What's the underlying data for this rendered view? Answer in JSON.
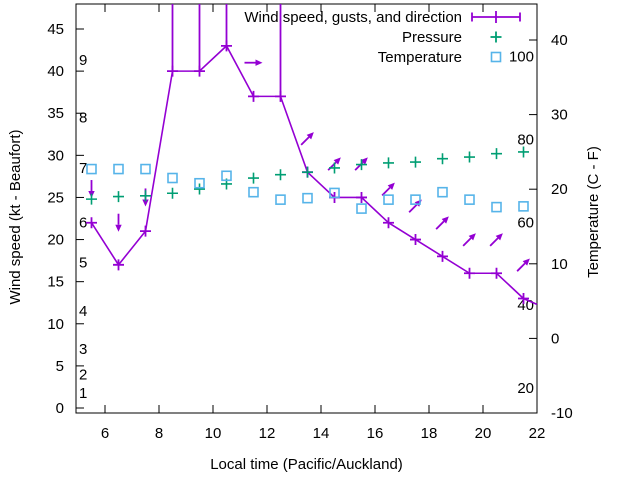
{
  "chart_data": {
    "type": "line",
    "title": "",
    "xlabel": "Local time (Pacific/Auckland)",
    "ylabel": "Wind speed (kt - Beaufort)",
    "y2label": "Temperature (C - F)",
    "background": "#ffffff",
    "grid": "off",
    "x_axis": {
      "tick_labels": [
        "6",
        "8",
        "10",
        "12",
        "14",
        "16",
        "18",
        "20",
        "22"
      ],
      "tick_hours": [
        6,
        8,
        10,
        12,
        14,
        16,
        18,
        20,
        22
      ],
      "range_hours": [
        4.93,
        22
      ]
    },
    "y_axis_left": {
      "tick_labels": [
        "0",
        "5",
        "10",
        "15",
        "20",
        "25",
        "30",
        "35",
        "40",
        "45"
      ],
      "tick_kt": [
        0,
        5,
        10,
        15,
        20,
        25,
        30,
        35,
        40,
        45
      ],
      "range_kt": [
        0,
        48
      ],
      "inner_scale": "Beaufort",
      "beaufort_labels": [
        {
          "label": "1",
          "kt": 1.8
        },
        {
          "label": "2",
          "kt": 4
        },
        {
          "label": "3",
          "kt": 7
        },
        {
          "label": "4",
          "kt": 11.5
        },
        {
          "label": "5",
          "kt": 17.3
        },
        {
          "label": "6",
          "kt": 22
        },
        {
          "label": "7",
          "kt": 28.5
        },
        {
          "label": "8",
          "kt": 34.5
        },
        {
          "label": "9",
          "kt": 41.3
        }
      ]
    },
    "y_axis_right": {
      "tick_labels": [
        "-10",
        "0",
        "10",
        "20",
        "30",
        "40"
      ],
      "tick_c": [
        -10,
        0,
        10,
        20,
        30,
        40
      ],
      "range_c": [
        -10.1,
        44.8
      ],
      "inner_scale": "Fahrenheit",
      "fahrenheit_labels": [
        20,
        40,
        60,
        80,
        100
      ]
    },
    "hours": [
      5.5,
      6.5,
      7.5,
      8.5,
      9.5,
      10.5,
      11.5,
      12.5,
      13.5,
      14.5,
      15.5,
      16.5,
      17.5,
      18.5,
      19.5,
      20.5,
      21.5
    ],
    "series": [
      {
        "name": "Wind speed, gusts, and direction",
        "color": "#9400d3",
        "marker": "plus",
        "style": "line with gust bars and direction arrows",
        "wind_kt": [
          22,
          17,
          21,
          40,
          40,
          43,
          37,
          37,
          28,
          25,
          25,
          22,
          20,
          18,
          16,
          16,
          13
        ],
        "gust_kt": [
          26,
          22,
          25,
          null,
          null,
          null,
          41,
          null,
          32,
          29,
          29,
          26,
          24,
          22,
          20,
          20,
          17
        ],
        "gust_above_chart_top": [
          false,
          false,
          false,
          true,
          true,
          true,
          false,
          true,
          false,
          false,
          false,
          false,
          false,
          false,
          false,
          false,
          false
        ],
        "direction_arrows": [
          "down",
          "down",
          "down",
          null,
          null,
          null,
          "right",
          null,
          "up-right",
          "up-right",
          "up-right",
          "up-right",
          "up-right",
          "up-right",
          "up-right",
          "up-right",
          "up-right"
        ],
        "line_exit": {
          "hour": 22,
          "kt": 12.3
        }
      },
      {
        "name": "Pressure",
        "color": "#009e73",
        "marker": "plus",
        "axis_note": "no pressure scale shown; values are plotted positions in left-axis units",
        "values_left_axis_units": [
          24.8,
          25.1,
          25.2,
          25.5,
          26.0,
          26.6,
          27.3,
          27.7,
          28.0,
          28.5,
          28.9,
          29.1,
          29.2,
          29.6,
          29.8,
          30.2,
          30.4
        ]
      },
      {
        "name": "Temperature",
        "color": "#56b4e9",
        "marker": "open-square",
        "temperature_c": [
          22.7,
          22.7,
          22.7,
          21.5,
          20.8,
          21.8,
          19.6,
          18.6,
          18.8,
          19.5,
          17.4,
          18.6,
          18.6,
          19.6,
          18.6,
          17.6,
          17.7
        ]
      }
    ],
    "legend": {
      "position": "inside top right",
      "items": [
        "Wind speed, gusts, and direction",
        "Pressure",
        "Temperature"
      ]
    }
  }
}
